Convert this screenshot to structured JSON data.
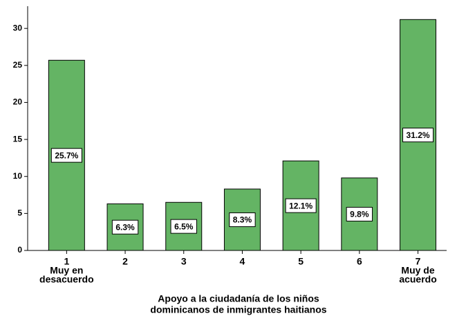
{
  "chart_data": {
    "type": "bar",
    "categories": [
      [
        "1",
        "Muy en",
        "desacuerdo"
      ],
      [
        "2"
      ],
      [
        "3"
      ],
      [
        "4"
      ],
      [
        "5"
      ],
      [
        "6"
      ],
      [
        "7",
        "Muy de",
        "acuerdo"
      ]
    ],
    "values": [
      25.7,
      6.3,
      6.5,
      8.3,
      12.1,
      9.8,
      31.2
    ],
    "value_labels": [
      "25.7%",
      "6.3%",
      "6.5%",
      "8.3%",
      "12.1%",
      "9.8%",
      "31.2%"
    ],
    "color": "#64b464",
    "ylim": [
      0,
      33
    ],
    "yticks": [
      0,
      5,
      10,
      15,
      20,
      25,
      30
    ],
    "x_label": [
      "Apoyo a la ciudadanía de los niños",
      "dominicanos de inmigrantes haitianos"
    ]
  }
}
